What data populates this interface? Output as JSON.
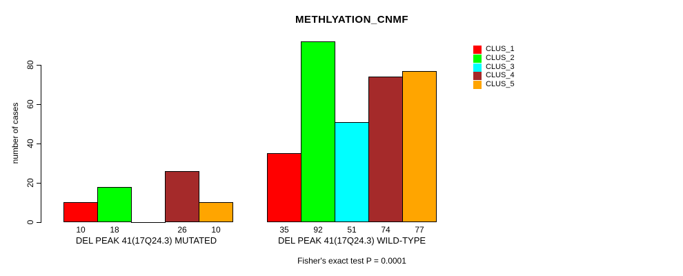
{
  "chart_data": {
    "type": "bar",
    "title": "METHLYATION_CNMF",
    "ylabel": "number of cases",
    "xlabel": "",
    "ylim": [
      0,
      80
    ],
    "yticks": [
      0,
      20,
      40,
      60,
      80
    ],
    "grid": false,
    "legend_position": "right",
    "legend": [
      {
        "name": "CLUS_1",
        "color": "#FF0000"
      },
      {
        "name": "CLUS_2",
        "color": "#00FF00"
      },
      {
        "name": "CLUS_3",
        "color": "#00FFFF"
      },
      {
        "name": "CLUS_4",
        "color": "#A52A2A"
      },
      {
        "name": "CLUS_5",
        "color": "#FFA500"
      }
    ],
    "groups": [
      {
        "label": "DEL PEAK 41(17Q24.3) MUTATED",
        "values": [
          10,
          18,
          0,
          26,
          10
        ],
        "bar_labels": [
          "10",
          "18",
          "",
          "26",
          "10"
        ]
      },
      {
        "label": "DEL PEAK 41(17Q24.3) WILD-TYPE",
        "values": [
          35,
          92,
          51,
          74,
          77
        ],
        "bar_labels": [
          "35",
          "92",
          "51",
          "74",
          "77"
        ]
      }
    ],
    "footnote": "Fisher's exact test P = 0.0001"
  }
}
